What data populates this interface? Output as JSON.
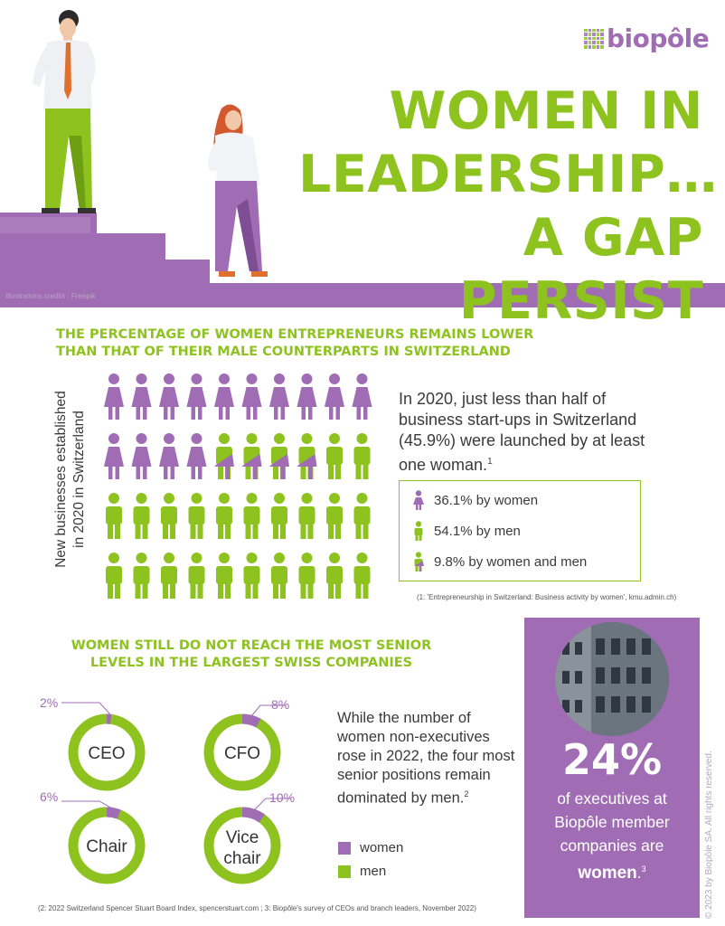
{
  "brand": {
    "logo": "biopôle"
  },
  "header": {
    "title_lines": [
      "WOMEN IN",
      "LEADERSHIP…",
      "A GAP PERSIST"
    ],
    "credits": "Illustrations credits : Freepik"
  },
  "section1": {
    "title_lines": [
      "THE PERCENTAGE OF WOMEN ENTREPRENEURS REMAINS LOWER",
      "THAN THAT OF THEIR MALE COUNTERPARTS IN SWITZERLAND"
    ],
    "axis_label_lines": [
      "New businesses established",
      "in 2020 in Switzerland"
    ],
    "text": "In 2020, just less than half of business start-ups in Switzerland (45.9%) were launched by at least one woman.",
    "text_ref": "1",
    "legend": [
      {
        "label": "36.1% by women",
        "icon": "woman-icon"
      },
      {
        "label": "54.1% by men",
        "icon": "man-icon"
      },
      {
        "label": "9.8% by women and men",
        "icon": "woman-and-man-icon"
      }
    ],
    "note": "(1: 'Entrepreneurship in Switzerland: Business activity by women', kmu.admin.ch)",
    "pictogram": {
      "women": 14,
      "mixed": 4,
      "men": 22,
      "colors": {
        "women": "#a06db5",
        "men": "#8dc21f"
      }
    }
  },
  "section2": {
    "title_lines": [
      "WOMEN STILL DO NOT REACH THE MOST SENIOR",
      "LEVELS IN THE LARGEST SWISS COMPANIES"
    ],
    "donuts": [
      {
        "role": "CEO",
        "pct_label": "2%",
        "value": 2
      },
      {
        "role": "CFO",
        "pct_label": "8%",
        "value": 8
      },
      {
        "role": "Chair",
        "pct_label": "6%",
        "value": 6
      },
      {
        "role_lines": [
          "Vice",
          "chair"
        ],
        "pct_label": "10%",
        "value": 10
      }
    ],
    "text": "While the number of women non-executives rose in 2022, the four most senior positions remain dominated by men.",
    "text_ref": "2",
    "legend": {
      "women": "women",
      "men": "men"
    },
    "note": "(2: 2022 Switzerland Spencer Stuart Board Index, spencerstuart.com ; 3: Biopôle's survey of CEOs and branch leaders, November 2022)"
  },
  "card": {
    "pct": "24%",
    "text_lines": [
      "of executives at",
      "Biopôle member",
      "companies are"
    ],
    "emph": "women",
    "ref": "3"
  },
  "copyright": "© 2023 by Biopôle SA. All rights reserved.",
  "colors": {
    "green": "#8dc21f",
    "purple": "#a06db5"
  }
}
